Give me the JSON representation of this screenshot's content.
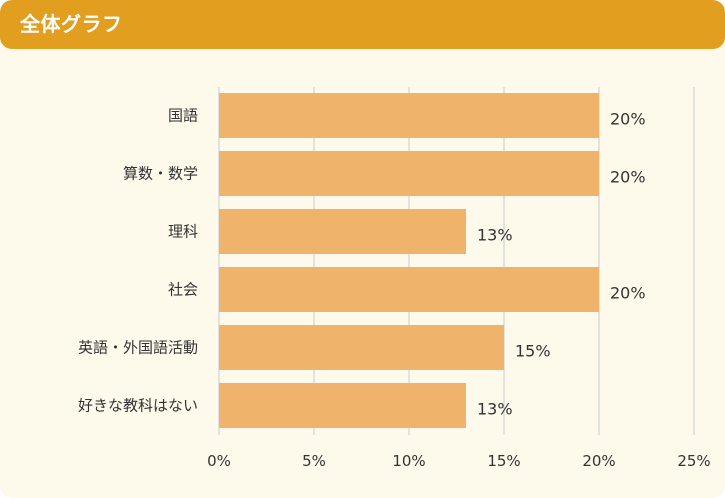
{
  "header": {
    "title": "全体グラフ"
  },
  "colors": {
    "header": "#e29f1f",
    "background": "#fdfaeb",
    "bar": "#efb36c",
    "grid": "#d9d9d9"
  },
  "chart_data": {
    "type": "bar",
    "orientation": "horizontal",
    "title": "",
    "xlabel": "",
    "ylabel": "",
    "categories": [
      "国語",
      "算数・数学",
      "理科",
      "社会",
      "英語・外国語活動",
      "好きな教科はない"
    ],
    "values": [
      20,
      20,
      13,
      20,
      15,
      13
    ],
    "value_labels": [
      "20%",
      "20%",
      "13%",
      "20%",
      "15%",
      "13%"
    ],
    "xlim": [
      0,
      25
    ],
    "xticks": [
      0,
      5,
      10,
      15,
      20,
      25
    ],
    "xtick_labels": [
      "0%",
      "5%",
      "10%",
      "15%",
      "20%",
      "25%"
    ],
    "grid": true,
    "legend": "none"
  }
}
